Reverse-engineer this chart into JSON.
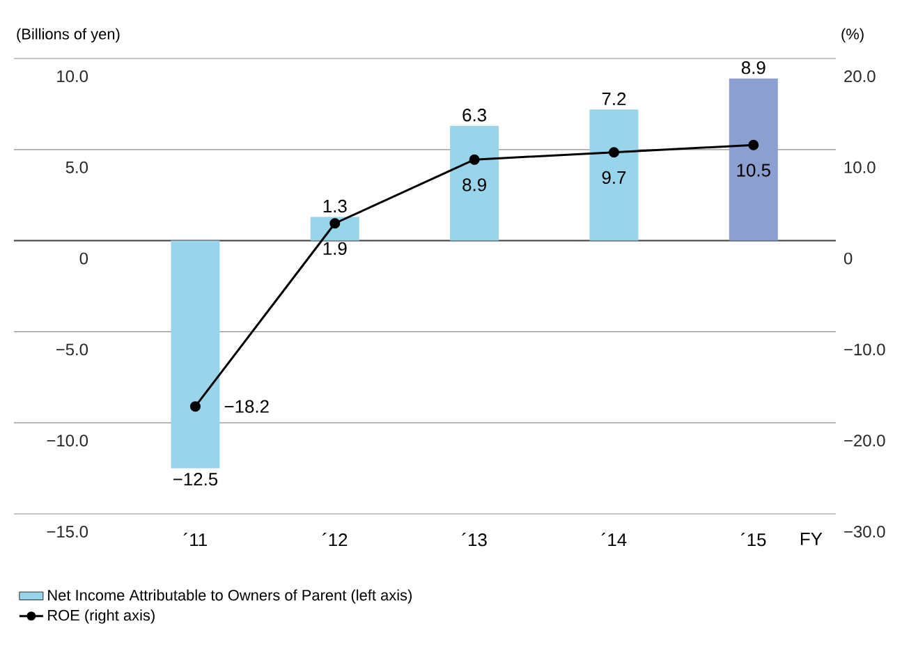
{
  "chart_data": {
    "type": "bar",
    "categories": [
      "´11",
      "´12",
      "´13",
      "´14",
      "´15"
    ],
    "xlabel": "FY",
    "ylabel": "(Billions of yen)",
    "y2label": "(%)",
    "ylim": [
      -15,
      10
    ],
    "yticks": [
      {
        "value": 10,
        "label": "10.0"
      },
      {
        "value": 5,
        "label": "5.0"
      },
      0,
      {
        "value": -5,
        "label": "−5.0"
      },
      {
        "value": -10,
        "label": "−10.0"
      },
      {
        "value": -15,
        "label": "−15.0"
      }
    ],
    "y2lim": [
      -30,
      20
    ],
    "y2ticks": [
      {
        "value": 20,
        "label": "20.0"
      },
      {
        "value": 10,
        "label": "10.0"
      },
      0,
      {
        "value": -10,
        "label": "−10.0"
      },
      {
        "value": -20,
        "label": "−20.0"
      },
      {
        "value": -30,
        "label": "−30.0"
      }
    ],
    "grid": "y",
    "legend": "bottom",
    "marker": "circle",
    "series": [
      {
        "name": "Net Income Attributable to Owners of Parent (left axis)",
        "colors": [
          "#98d4ea",
          "#98d4ea",
          "#98d4ea",
          "#98d4ea",
          "#8c9fd1"
        ],
        "values": [
          -12.5,
          1.3,
          6.3,
          7.2,
          8.9
        ],
        "value_labels": [
          "−12.5",
          "1.3",
          "6.3",
          "7.2",
          "8.9"
        ]
      },
      {
        "name": "ROE (right axis)",
        "type": "line",
        "axis": "y2",
        "color": "#000000",
        "values": [
          -18.2,
          1.9,
          8.9,
          9.7,
          10.5
        ],
        "value_labels": [
          "−18.2",
          "1.9",
          "8.9",
          "9.7",
          "10.5"
        ]
      }
    ]
  }
}
